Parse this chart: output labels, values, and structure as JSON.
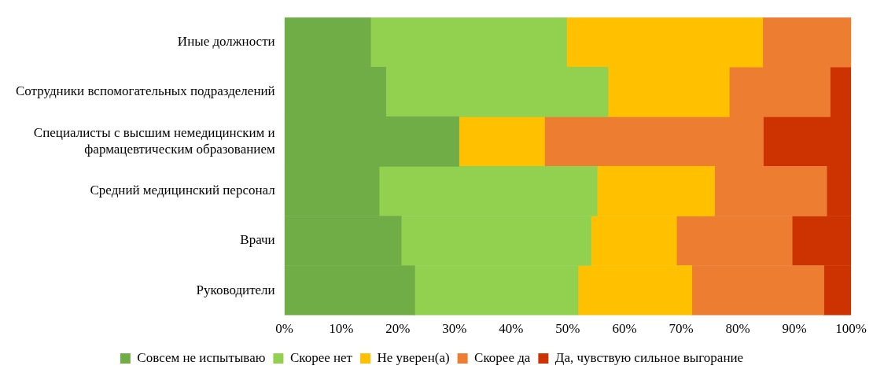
{
  "chart_data": {
    "type": "bar",
    "orientation": "horizontal",
    "stacked": true,
    "categories": [
      "Иные должности",
      "Сотрудники вспомогательных подразделений",
      "Специалисты с высшим немедицинским и фармацевтическим образованием",
      "Средний медицинский персонал",
      "Врачи",
      "Руководители"
    ],
    "series": [
      {
        "name": "Совсем не испытываю",
        "color": "#70ad47",
        "values": [
          15.2,
          17.9,
          30.8,
          16.7,
          20.6,
          23.0
        ]
      },
      {
        "name": "Скорее нет",
        "color": "#92d050",
        "values": [
          34.6,
          39.2,
          0,
          38.5,
          33.5,
          28.8
        ]
      },
      {
        "name": "Не уверен(а)",
        "color": "#ffc000",
        "values": [
          34.6,
          21.4,
          15.1,
          20.7,
          15.1,
          20.1
        ]
      },
      {
        "name": "Скорее да",
        "color": "#ed7d31",
        "values": [
          15.6,
          17.8,
          38.6,
          19.8,
          20.4,
          23.3
        ]
      },
      {
        "name": "Да, чувствую сильное выгорание",
        "color": "#cc3300",
        "values": [
          0,
          3.7,
          15.5,
          4.3,
          10.4,
          4.8
        ]
      }
    ],
    "xlim": [
      0,
      100
    ],
    "xticks": [
      {
        "value": 0,
        "label": "0%"
      },
      {
        "value": 10,
        "label": "10%"
      },
      {
        "value": 20,
        "label": "20%"
      },
      {
        "value": 30,
        "label": "30%"
      },
      {
        "value": 40,
        "label": "40%"
      },
      {
        "value": 50,
        "label": "50%"
      },
      {
        "value": 60,
        "label": "60%"
      },
      {
        "value": 70,
        "label": "70%"
      },
      {
        "value": 80,
        "label": "80%"
      },
      {
        "value": 90,
        "label": "90%"
      },
      {
        "value": 100,
        "label": "100%"
      }
    ],
    "grid": false,
    "legend": "bottom"
  }
}
